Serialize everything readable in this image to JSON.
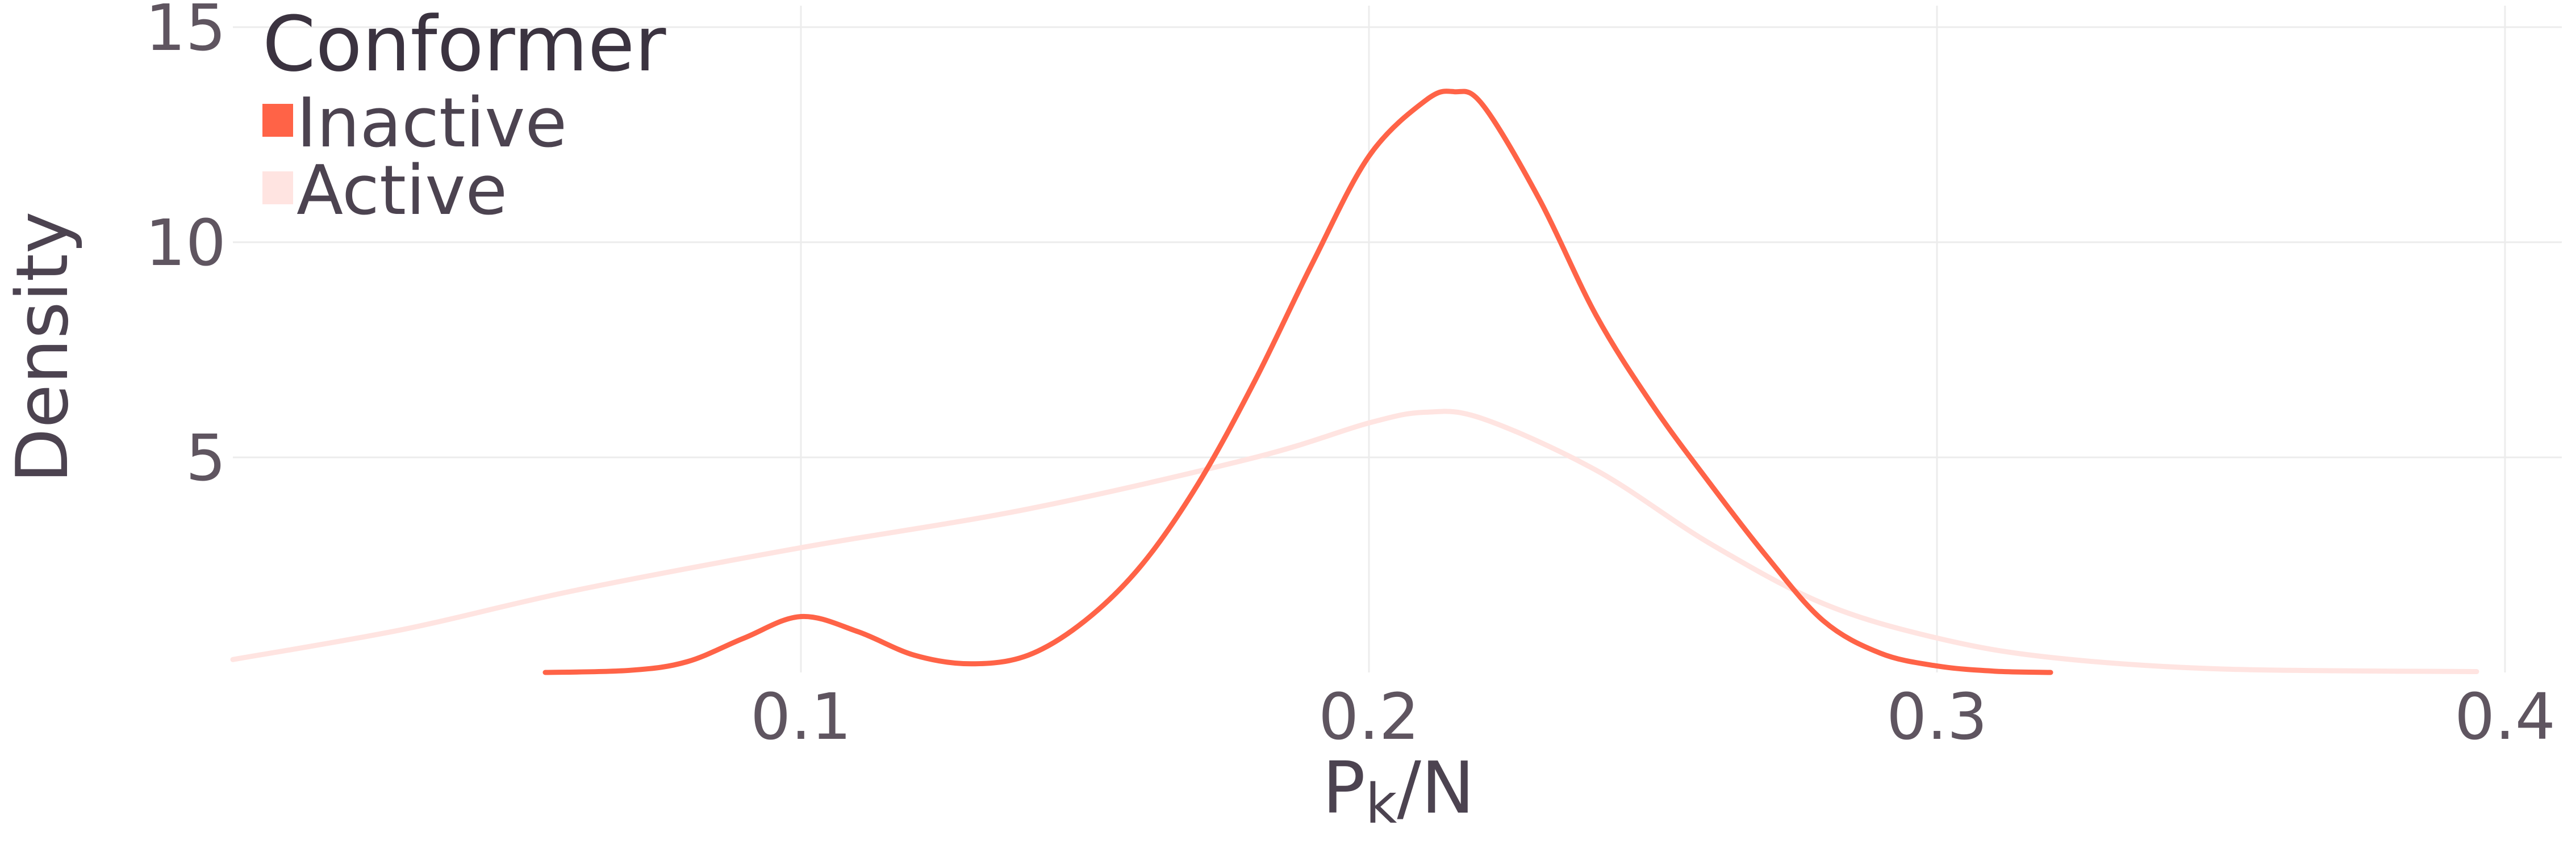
{
  "chart_data": {
    "type": "line",
    "title": "",
    "xlabel": "P",
    "xlabel_sub": "k",
    "xlabel_suffix": "/N",
    "ylabel": "Density",
    "xlim": [
      0,
      0.41
    ],
    "ylim": [
      0,
      15.5
    ],
    "x_ticks": [
      0.1,
      0.2,
      0.3,
      0.4
    ],
    "x_tick_labels": [
      "0.1",
      "0.2",
      "0.3",
      "0.4"
    ],
    "y_ticks": [
      5,
      10,
      15
    ],
    "y_tick_labels": [
      "5",
      "10",
      "15"
    ],
    "grid": true,
    "legend": {
      "title": "Conformer",
      "position": "top-left",
      "entries": [
        {
          "label": "Inactive",
          "color": "#ff6347"
        },
        {
          "label": "Active",
          "color": "#ffe4e1"
        }
      ]
    },
    "series": [
      {
        "name": "Inactive",
        "color": "#ff6347",
        "x": [
          0.055,
          0.07,
          0.08,
          0.09,
          0.1,
          0.11,
          0.12,
          0.13,
          0.14,
          0.15,
          0.16,
          0.17,
          0.18,
          0.19,
          0.2,
          0.21,
          0.215,
          0.22,
          0.23,
          0.24,
          0.25,
          0.26,
          0.27,
          0.28,
          0.29,
          0.3,
          0.31,
          0.32
        ],
        "y": [
          0.0,
          0.05,
          0.25,
          0.8,
          1.3,
          0.95,
          0.4,
          0.2,
          0.4,
          1.2,
          2.5,
          4.4,
          6.8,
          9.5,
          12.0,
          13.3,
          13.5,
          13.2,
          11.0,
          8.3,
          6.2,
          4.4,
          2.7,
          1.2,
          0.45,
          0.15,
          0.03,
          0.0
        ]
      },
      {
        "name": "Active",
        "color": "#ffe4e1",
        "x": [
          0.0,
          0.03,
          0.06,
          0.1,
          0.14,
          0.18,
          0.2,
          0.21,
          0.22,
          0.24,
          0.26,
          0.28,
          0.3,
          0.32,
          0.35,
          0.395
        ],
        "y": [
          0.3,
          1.0,
          1.9,
          2.9,
          3.8,
          5.0,
          5.8,
          6.05,
          5.9,
          4.7,
          3.0,
          1.6,
          0.8,
          0.35,
          0.08,
          0.02
        ]
      }
    ]
  }
}
